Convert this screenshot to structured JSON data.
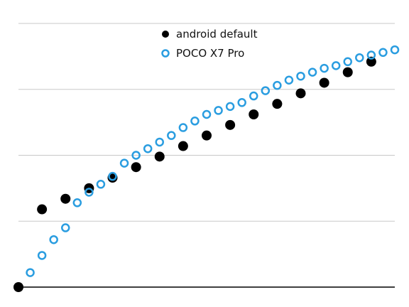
{
  "chart_data": {
    "type": "scatter",
    "title": "",
    "xlabel": "",
    "ylabel": "",
    "xlim": [
      0,
      32
    ],
    "ylim": [
      0,
      1
    ],
    "y_gridlines": [
      0.25,
      0.5,
      0.75,
      1.0
    ],
    "grid": "horizontal",
    "legend": "top-center",
    "series": [
      {
        "name": "android default",
        "marker": "filled-circle",
        "color": "#000000",
        "points": [
          {
            "x": 0,
            "y": 0.0
          },
          {
            "x": 2,
            "y": 0.295
          },
          {
            "x": 4,
            "y": 0.335
          },
          {
            "x": 6,
            "y": 0.375
          },
          {
            "x": 8,
            "y": 0.415
          },
          {
            "x": 10,
            "y": 0.455
          },
          {
            "x": 12,
            "y": 0.495
          },
          {
            "x": 14,
            "y": 0.535
          },
          {
            "x": 16,
            "y": 0.575
          },
          {
            "x": 18,
            "y": 0.615
          },
          {
            "x": 20,
            "y": 0.655
          },
          {
            "x": 22,
            "y": 0.695
          },
          {
            "x": 24,
            "y": 0.735
          },
          {
            "x": 26,
            "y": 0.775
          },
          {
            "x": 28,
            "y": 0.815
          },
          {
            "x": 30,
            "y": 0.855
          }
        ]
      },
      {
        "name": "POCO X7 Pro",
        "marker": "hollow-circle",
        "color": "#2a9de0",
        "points": [
          {
            "x": 1,
            "y": 0.055
          },
          {
            "x": 2,
            "y": 0.12
          },
          {
            "x": 3,
            "y": 0.18
          },
          {
            "x": 4,
            "y": 0.225
          },
          {
            "x": 5,
            "y": 0.32
          },
          {
            "x": 6,
            "y": 0.36
          },
          {
            "x": 7,
            "y": 0.39
          },
          {
            "x": 8,
            "y": 0.42
          },
          {
            "x": 9,
            "y": 0.47
          },
          {
            "x": 10,
            "y": 0.5
          },
          {
            "x": 11,
            "y": 0.525
          },
          {
            "x": 12,
            "y": 0.55
          },
          {
            "x": 13,
            "y": 0.575
          },
          {
            "x": 14,
            "y": 0.605
          },
          {
            "x": 15,
            "y": 0.63
          },
          {
            "x": 16,
            "y": 0.655
          },
          {
            "x": 17,
            "y": 0.67
          },
          {
            "x": 18,
            "y": 0.685
          },
          {
            "x": 19,
            "y": 0.7
          },
          {
            "x": 20,
            "y": 0.725
          },
          {
            "x": 21,
            "y": 0.745
          },
          {
            "x": 22,
            "y": 0.765
          },
          {
            "x": 23,
            "y": 0.785
          },
          {
            "x": 24,
            "y": 0.8
          },
          {
            "x": 25,
            "y": 0.815
          },
          {
            "x": 26,
            "y": 0.83
          },
          {
            "x": 27,
            "y": 0.84
          },
          {
            "x": 28,
            "y": 0.855
          },
          {
            "x": 29,
            "y": 0.87
          },
          {
            "x": 30,
            "y": 0.88
          },
          {
            "x": 31,
            "y": 0.89
          },
          {
            "x": 32,
            "y": 0.9
          }
        ]
      }
    ]
  }
}
